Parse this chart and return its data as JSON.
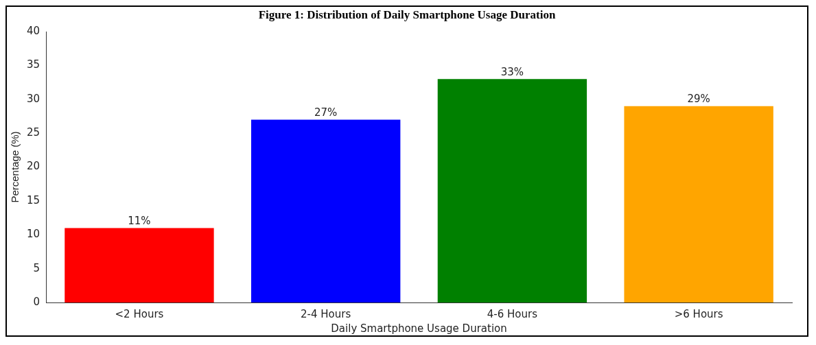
{
  "chart_data": {
    "type": "bar",
    "title": "Figure 1: Distribution of Daily Smartphone Usage Duration",
    "xlabel": "Daily Smartphone Usage Duration",
    "ylabel": "Percentage (%)",
    "categories": [
      "<2 Hours",
      "2-4 Hours",
      "4-6 Hours",
      ">6 Hours"
    ],
    "values": [
      11,
      27,
      33,
      29
    ],
    "colors": [
      "#ff0000",
      "#0000ff",
      "#008000",
      "#ffa500"
    ],
    "value_labels": [
      "11%",
      "27%",
      "33%",
      "29%"
    ],
    "ylim": [
      0,
      40
    ],
    "yticks": [
      0,
      5,
      10,
      15,
      20,
      25,
      30,
      35,
      40
    ],
    "grid": false,
    "legend": false
  }
}
